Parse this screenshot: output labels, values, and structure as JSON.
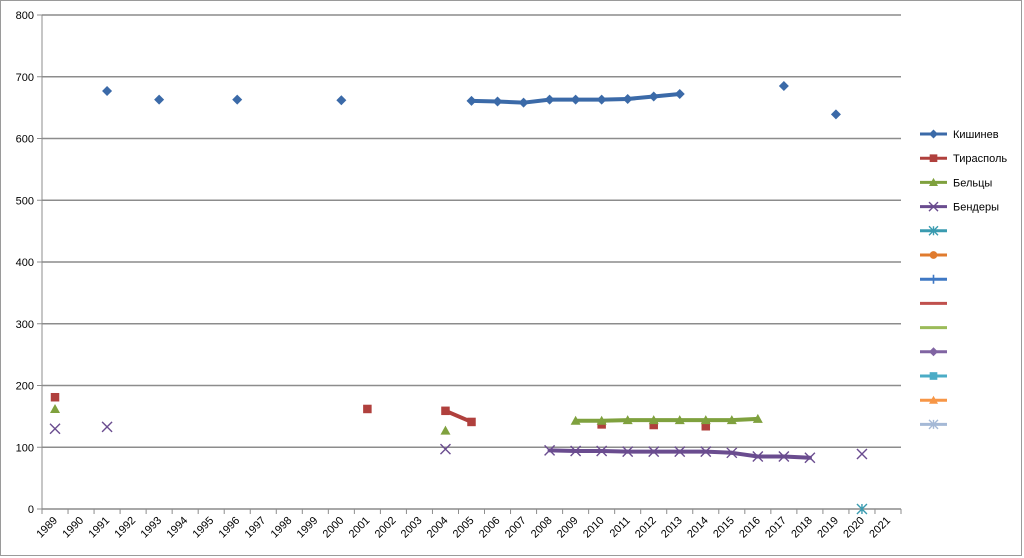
{
  "chart_data": {
    "type": "line",
    "title": "",
    "xlabel": "",
    "ylabel": "",
    "ylim": [
      0,
      800
    ],
    "yticks": [
      "0",
      "100",
      "200",
      "300",
      "400",
      "500",
      "600",
      "700",
      "800"
    ],
    "grid": true,
    "legend_position": "right",
    "x": [
      "1989",
      "1990",
      "1991",
      "1992",
      "1993",
      "1994",
      "1995",
      "1996",
      "1997",
      "1998",
      "1999",
      "2000",
      "2001",
      "2002",
      "2003",
      "2004",
      "2005",
      "2006",
      "2007",
      "2008",
      "2009",
      "2010",
      "2011",
      "2012",
      "2013",
      "2014",
      "2015",
      "2016",
      "2017",
      "2018",
      "2019",
      "2020",
      "2021"
    ],
    "series": [
      {
        "name": "Кишинев",
        "color": "#3b6aa8",
        "marker": "diamond",
        "points": [
          {
            "x": "1989",
            "y": null
          },
          {
            "x": "1990",
            "y": null
          },
          {
            "x": "1991",
            "y": 677
          },
          {
            "x": "1992",
            "y": null
          },
          {
            "x": "1993",
            "y": 663
          },
          {
            "x": "1994",
            "y": null
          },
          {
            "x": "1995",
            "y": null
          },
          {
            "x": "1996",
            "y": 663
          },
          {
            "x": "1997",
            "y": null
          },
          {
            "x": "1998",
            "y": null
          },
          {
            "x": "1999",
            "y": null
          },
          {
            "x": "2000",
            "y": 662
          },
          {
            "x": "2001",
            "y": null
          },
          {
            "x": "2002",
            "y": null
          },
          {
            "x": "2003",
            "y": null
          },
          {
            "x": "2004",
            "y": null
          },
          {
            "x": "2005",
            "y": 661
          },
          {
            "x": "2006",
            "y": 660
          },
          {
            "x": "2007",
            "y": 658
          },
          {
            "x": "2008",
            "y": 663
          },
          {
            "x": "2009",
            "y": 663
          },
          {
            "x": "2010",
            "y": 663
          },
          {
            "x": "2011",
            "y": 664
          },
          {
            "x": "2012",
            "y": 668
          },
          {
            "x": "2013",
            "y": 672
          },
          {
            "x": "2014",
            "y": null
          },
          {
            "x": "2015",
            "y": null
          },
          {
            "x": "2016",
            "y": null
          },
          {
            "x": "2017",
            "y": 685
          },
          {
            "x": "2018",
            "y": null
          },
          {
            "x": "2019",
            "y": 639
          },
          {
            "x": "2020",
            "y": null
          },
          {
            "x": "2021",
            "y": null
          }
        ]
      },
      {
        "name": "Тирасполь",
        "color": "#b0403d",
        "marker": "square",
        "points": [
          {
            "x": "1989",
            "y": 181
          },
          {
            "x": "1990",
            "y": null
          },
          {
            "x": "1991",
            "y": null
          },
          {
            "x": "1992",
            "y": null
          },
          {
            "x": "1993",
            "y": null
          },
          {
            "x": "1994",
            "y": null
          },
          {
            "x": "1995",
            "y": null
          },
          {
            "x": "1996",
            "y": null
          },
          {
            "x": "1997",
            "y": null
          },
          {
            "x": "1998",
            "y": null
          },
          {
            "x": "1999",
            "y": null
          },
          {
            "x": "2000",
            "y": null
          },
          {
            "x": "2001",
            "y": 162
          },
          {
            "x": "2002",
            "y": null
          },
          {
            "x": "2003",
            "y": null
          },
          {
            "x": "2004",
            "y": 159
          },
          {
            "x": "2005",
            "y": 141
          },
          {
            "x": "2006",
            "y": null
          },
          {
            "x": "2007",
            "y": null
          },
          {
            "x": "2008",
            "y": null
          },
          {
            "x": "2009",
            "y": null
          },
          {
            "x": "2010",
            "y": 137
          },
          {
            "x": "2011",
            "y": null
          },
          {
            "x": "2012",
            "y": 136
          },
          {
            "x": "2013",
            "y": null
          },
          {
            "x": "2014",
            "y": 134
          },
          {
            "x": "2015",
            "y": null
          },
          {
            "x": "2016",
            "y": null
          },
          {
            "x": "2017",
            "y": null
          },
          {
            "x": "2018",
            "y": null
          },
          {
            "x": "2019",
            "y": null
          },
          {
            "x": "2020",
            "y": null
          },
          {
            "x": "2021",
            "y": null
          }
        ]
      },
      {
        "name": "Бельцы",
        "color": "#7fa13e",
        "marker": "triangle",
        "points": [
          {
            "x": "1989",
            "y": 162
          },
          {
            "x": "1990",
            "y": null
          },
          {
            "x": "1991",
            "y": null
          },
          {
            "x": "1992",
            "y": null
          },
          {
            "x": "1993",
            "y": null
          },
          {
            "x": "1994",
            "y": null
          },
          {
            "x": "1995",
            "y": null
          },
          {
            "x": "1996",
            "y": null
          },
          {
            "x": "1997",
            "y": null
          },
          {
            "x": "1998",
            "y": null
          },
          {
            "x": "1999",
            "y": null
          },
          {
            "x": "2000",
            "y": null
          },
          {
            "x": "2001",
            "y": null
          },
          {
            "x": "2002",
            "y": null
          },
          {
            "x": "2003",
            "y": null
          },
          {
            "x": "2004",
            "y": 127
          },
          {
            "x": "2005",
            "y": null
          },
          {
            "x": "2006",
            "y": null
          },
          {
            "x": "2007",
            "y": null
          },
          {
            "x": "2008",
            "y": null
          },
          {
            "x": "2009",
            "y": 143
          },
          {
            "x": "2010",
            "y": 143
          },
          {
            "x": "2011",
            "y": 144
          },
          {
            "x": "2012",
            "y": 144
          },
          {
            "x": "2013",
            "y": 144
          },
          {
            "x": "2014",
            "y": 144
          },
          {
            "x": "2015",
            "y": 144
          },
          {
            "x": "2016",
            "y": 146
          },
          {
            "x": "2017",
            "y": null
          },
          {
            "x": "2018",
            "y": null
          },
          {
            "x": "2019",
            "y": null
          },
          {
            "x": "2020",
            "y": null
          },
          {
            "x": "2021",
            "y": null
          }
        ]
      },
      {
        "name": "Бендеры",
        "color": "#6a4c8f",
        "marker": "x",
        "points": [
          {
            "x": "1989",
            "y": 130
          },
          {
            "x": "1990",
            "y": null
          },
          {
            "x": "1991",
            "y": 133
          },
          {
            "x": "1992",
            "y": null
          },
          {
            "x": "1993",
            "y": null
          },
          {
            "x": "1994",
            "y": null
          },
          {
            "x": "1995",
            "y": null
          },
          {
            "x": "1996",
            "y": null
          },
          {
            "x": "1997",
            "y": null
          },
          {
            "x": "1998",
            "y": null
          },
          {
            "x": "1999",
            "y": null
          },
          {
            "x": "2000",
            "y": null
          },
          {
            "x": "2001",
            "y": null
          },
          {
            "x": "2002",
            "y": null
          },
          {
            "x": "2003",
            "y": null
          },
          {
            "x": "2004",
            "y": 97
          },
          {
            "x": "2005",
            "y": null
          },
          {
            "x": "2006",
            "y": null
          },
          {
            "x": "2007",
            "y": null
          },
          {
            "x": "2008",
            "y": 95
          },
          {
            "x": "2009",
            "y": 94
          },
          {
            "x": "2010",
            "y": 94
          },
          {
            "x": "2011",
            "y": 93
          },
          {
            "x": "2012",
            "y": 93
          },
          {
            "x": "2013",
            "y": 93
          },
          {
            "x": "2014",
            "y": 93
          },
          {
            "x": "2015",
            "y": 91
          },
          {
            "x": "2016",
            "y": 85
          },
          {
            "x": "2017",
            "y": 85
          },
          {
            "x": "2018",
            "y": 83
          },
          {
            "x": "2019",
            "y": null
          },
          {
            "x": "2020",
            "y": 89
          },
          {
            "x": "2021",
            "y": null
          }
        ]
      },
      {
        "name": "",
        "color": "#3a9bb0",
        "marker": "star",
        "points": [
          {
            "x": "2020",
            "y": 0
          }
        ]
      },
      {
        "name": "",
        "color": "#e07b2e",
        "marker": "circle",
        "points": []
      },
      {
        "name": "",
        "color": "#3f78c4",
        "marker": "plus",
        "points": []
      },
      {
        "name": "",
        "color": "#c0504d",
        "marker": "none",
        "points": []
      },
      {
        "name": "",
        "color": "#9bbb59",
        "marker": "none",
        "points": []
      },
      {
        "name": "",
        "color": "#8064a2",
        "marker": "diamond",
        "points": []
      },
      {
        "name": "",
        "color": "#4bacc6",
        "marker": "square",
        "points": []
      },
      {
        "name": "",
        "color": "#f79646",
        "marker": "triangle",
        "points": []
      },
      {
        "name": "",
        "color": "#a5b9d6",
        "marker": "star",
        "points": []
      }
    ]
  }
}
